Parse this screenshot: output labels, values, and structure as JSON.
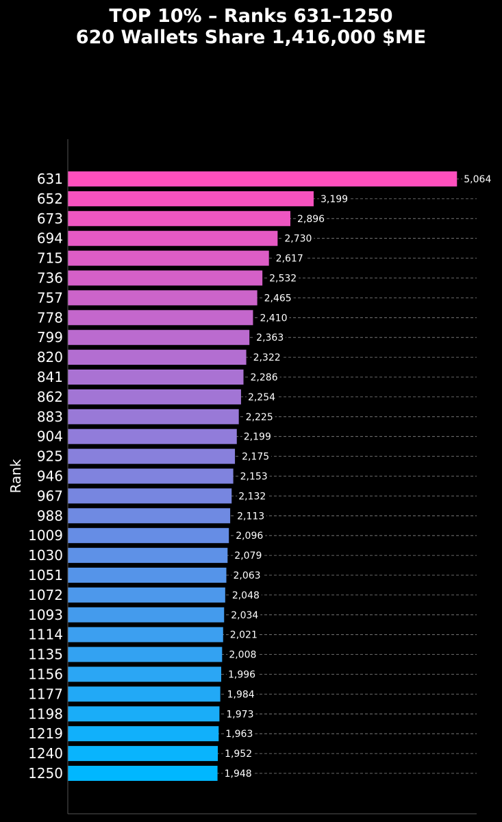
{
  "chart_data": {
    "type": "bar",
    "orientation": "horizontal",
    "title": "TOP 10% – Ranks 631–1250",
    "subtitle": "620 Wallets Share 1,416,000 $ME",
    "xlabel": "",
    "ylabel": "Rank",
    "grid": "x-dashed",
    "categories": [
      "631",
      "652",
      "673",
      "694",
      "715",
      "736",
      "757",
      "778",
      "799",
      "820",
      "841",
      "862",
      "883",
      "904",
      "925",
      "946",
      "967",
      "988",
      "1009",
      "1030",
      "1051",
      "1072",
      "1093",
      "1114",
      "1135",
      "1156",
      "1177",
      "1198",
      "1219",
      "1240",
      "1250"
    ],
    "values": [
      5064,
      3199,
      2896,
      2730,
      2617,
      2532,
      2465,
      2410,
      2363,
      2322,
      2286,
      2254,
      2225,
      2199,
      2175,
      2153,
      2132,
      2113,
      2096,
      2079,
      2063,
      2048,
      2034,
      2021,
      2008,
      1996,
      1984,
      1973,
      1963,
      1952,
      1948
    ],
    "value_labels": [
      "5,064",
      "3,199",
      "2,896",
      "2,730",
      "2,617",
      "2,532",
      "2,465",
      "2,410",
      "2,363",
      "2,322",
      "2,286",
      "2,254",
      "2,225",
      "2,199",
      "2,175",
      "2,153",
      "2,132",
      "2,113",
      "2,096",
      "2,079",
      "2,063",
      "2,048",
      "2,034",
      "2,021",
      "2,008",
      "1,996",
      "1,984",
      "1,973",
      "1,963",
      "1,952",
      "1,948"
    ],
    "xlim": [
      0,
      5320
    ],
    "colors": {
      "start": "#ff4fbd",
      "end": "#00b7ff",
      "background": "#000000",
      "axis": "#555555",
      "grid": "#8a8a8a"
    }
  }
}
